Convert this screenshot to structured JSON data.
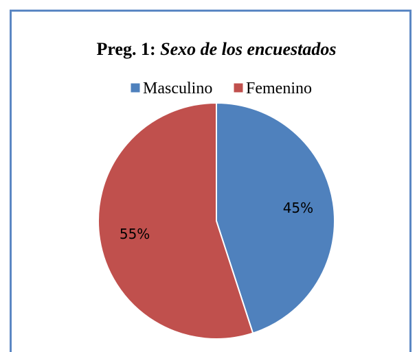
{
  "chart_data": {
    "type": "pie",
    "title_prefix": "Preg. 1:",
    "title": "Sexo de los encuestados",
    "categories": [
      "Masculino",
      "Femenino"
    ],
    "values": [
      45,
      55
    ],
    "value_labels": [
      "45%",
      "55%"
    ],
    "colors": [
      "#4f81bd",
      "#c0504d"
    ],
    "legend": "top"
  }
}
